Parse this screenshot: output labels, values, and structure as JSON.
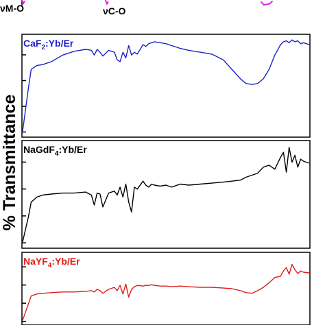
{
  "chart_data": {
    "type": "line",
    "ylabel": "% Transmittance",
    "top_annotations": [
      "νM-O",
      "νC-O"
    ],
    "x_direction": "wavenumber decreasing left to right (relative scale 0–1)",
    "grid": false,
    "panels": [
      {
        "label_main": "CaF",
        "label_sub": "2",
        "label_rest": ":Yb/Er",
        "color": "#1f22c8",
        "x": [
          0,
          0.02,
          0.03,
          0.05,
          0.07,
          0.1,
          0.14,
          0.18,
          0.22,
          0.24,
          0.25,
          0.26,
          0.27,
          0.28,
          0.3,
          0.32,
          0.33,
          0.34,
          0.35,
          0.36,
          0.37,
          0.38,
          0.39,
          0.4,
          0.42,
          0.43,
          0.44,
          0.45,
          0.46,
          0.48,
          0.5,
          0.52,
          0.55,
          0.58,
          0.62,
          0.66,
          0.7,
          0.73,
          0.76,
          0.78,
          0.8,
          0.82,
          0.84,
          0.86,
          0.88,
          0.9,
          0.91,
          0.92,
          0.93,
          0.94,
          0.95,
          0.96,
          0.97,
          0.98,
          1.0
        ],
        "y": [
          5,
          50,
          70,
          74,
          75,
          78,
          85,
          89,
          91,
          90,
          85,
          91,
          88,
          84,
          90,
          88,
          80,
          78,
          88,
          82,
          95,
          85,
          88,
          86,
          96,
          94,
          97,
          98,
          99,
          98,
          97,
          95,
          92,
          90,
          88,
          86,
          80,
          70,
          60,
          55,
          54,
          55,
          60,
          70,
          85,
          96,
          99,
          100,
          98,
          101,
          99,
          100,
          97,
          98,
          96
        ]
      },
      {
        "label_main": "NaGdF",
        "label_sub": "4",
        "label_rest": ":Yb/Er",
        "color": "#000000",
        "x": [
          0,
          0.02,
          0.03,
          0.05,
          0.07,
          0.1,
          0.14,
          0.18,
          0.22,
          0.24,
          0.25,
          0.26,
          0.27,
          0.28,
          0.3,
          0.32,
          0.33,
          0.34,
          0.35,
          0.36,
          0.37,
          0.38,
          0.39,
          0.4,
          0.42,
          0.43,
          0.44,
          0.45,
          0.46,
          0.48,
          0.5,
          0.52,
          0.55,
          0.58,
          0.62,
          0.66,
          0.7,
          0.73,
          0.76,
          0.78,
          0.8,
          0.82,
          0.84,
          0.86,
          0.88,
          0.9,
          0.91,
          0.92,
          0.93,
          0.94,
          0.95,
          0.96,
          0.97,
          0.98,
          1.0
        ],
        "y": [
          5,
          30,
          45,
          50,
          52,
          53,
          54,
          54,
          55,
          52,
          42,
          54,
          53,
          40,
          54,
          56,
          52,
          60,
          50,
          63,
          45,
          35,
          60,
          58,
          66,
          62,
          60,
          63,
          62,
          61,
          62,
          60,
          63,
          62,
          63,
          64,
          65,
          66,
          67,
          70,
          72,
          74,
          80,
          82,
          78,
          90,
          95,
          75,
          100,
          85,
          92,
          80,
          88,
          86,
          84
        ]
      },
      {
        "label_main": "NaYF",
        "label_sub": "4",
        "label_rest": ":Yb/Er",
        "color": "#e01b1b",
        "x": [
          0,
          0.02,
          0.03,
          0.05,
          0.07,
          0.1,
          0.14,
          0.18,
          0.22,
          0.24,
          0.25,
          0.26,
          0.27,
          0.28,
          0.3,
          0.32,
          0.33,
          0.34,
          0.35,
          0.36,
          0.37,
          0.38,
          0.39,
          0.4,
          0.42,
          0.43,
          0.44,
          0.45,
          0.46,
          0.48,
          0.5,
          0.52,
          0.55,
          0.58,
          0.62,
          0.66,
          0.7,
          0.73,
          0.76,
          0.78,
          0.8,
          0.82,
          0.84,
          0.86,
          0.88,
          0.9,
          0.91,
          0.92,
          0.93,
          0.94,
          0.95,
          0.96,
          0.97,
          0.98,
          1.0
        ],
        "y": [
          5,
          30,
          42,
          45,
          46,
          47,
          48,
          48,
          49,
          50,
          48,
          52,
          50,
          46,
          52,
          55,
          50,
          58,
          45,
          60,
          40,
          52,
          56,
          58,
          57,
          58,
          58,
          59,
          58,
          57,
          57,
          56,
          57,
          56,
          55,
          55,
          54,
          53,
          50,
          47,
          46,
          50,
          55,
          62,
          70,
          72,
          80,
          85,
          75,
          90,
          82,
          76,
          80,
          78,
          77
        ]
      }
    ],
    "top_strip": {
      "color": "#e020e0",
      "segments": [
        {
          "x": [
            0.0,
            0.005,
            0.01
          ],
          "y": [
            0.0,
            0.6,
            0.2
          ]
        },
        {
          "x": [
            0.29,
            0.295,
            0.3
          ],
          "y": [
            0.0,
            0.7,
            0.3
          ]
        },
        {
          "x": [
            0.83,
            0.84,
            0.86,
            0.87
          ],
          "y": [
            0.3,
            0.9,
            0.7,
            0.2
          ]
        }
      ]
    }
  }
}
